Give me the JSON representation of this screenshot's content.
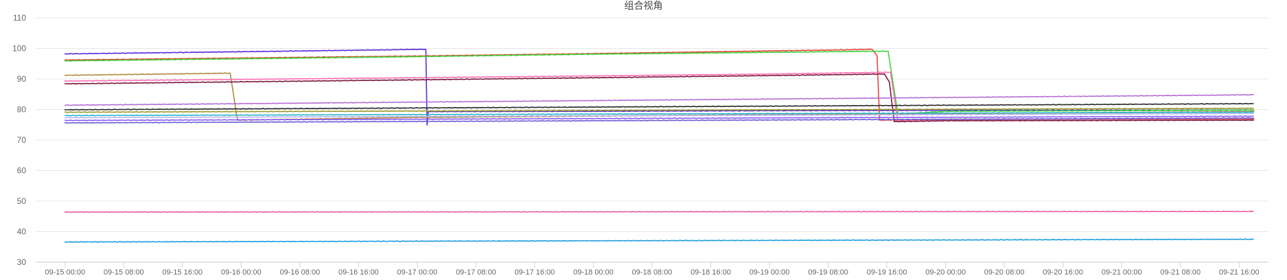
{
  "chart_data": {
    "type": "line",
    "title": "组合视角",
    "xlabel": "",
    "ylabel": "",
    "ylim": [
      30,
      110
    ],
    "yticks": [
      30,
      40,
      50,
      60,
      70,
      80,
      90,
      100,
      110
    ],
    "xlim": [
      "09-14 20:00",
      "09-21 20:00"
    ],
    "xticks": [
      "09-15 00:00",
      "09-15 08:00",
      "09-15 16:00",
      "09-16 00:00",
      "09-16 08:00",
      "09-16 16:00",
      "09-17 00:00",
      "09-17 08:00",
      "09-17 16:00",
      "09-18 00:00",
      "09-18 08:00",
      "09-18 16:00",
      "09-19 00:00",
      "09-19 08:00",
      "09-19 16:00",
      "09-20 00:00",
      "09-20 08:00",
      "09-20 16:00",
      "09-21 00:00",
      "09-21 08:00",
      "09-21 16:00"
    ],
    "grid": true,
    "legend": "none",
    "series": [
      {
        "color": "#5b2bd9",
        "x": [
          "09-15 00:00",
          "09-16 00:00",
          "09-17 01:10",
          "09-17 01:20",
          "09-17 01:30",
          "09-18 00:00",
          "09-19 00:00",
          "09-20 00:00",
          "09-21 18:00"
        ],
        "y": [
          98.2,
          98.9,
          99.7,
          75,
          79.3,
          79.4,
          79.6,
          79.7,
          79.8
        ]
      },
      {
        "color": "#e8443a",
        "x": [
          "09-15 00:00",
          "09-17 00:00",
          "09-18 00:00",
          "09-19 12:00",
          "09-19 14:00",
          "09-19 14:40",
          "09-19 15:00",
          "09-20 00:00",
          "09-21 18:00"
        ],
        "y": [
          96.2,
          97.5,
          98.3,
          99.6,
          99.7,
          97.5,
          76.5,
          76.8,
          77.0
        ]
      },
      {
        "color": "#3fd33f",
        "x": [
          "09-15 00:00",
          "09-17 00:00",
          "09-18 00:00",
          "09-19 12:00",
          "09-19 16:10",
          "09-19 17:30",
          "09-20 00:00",
          "09-21 18:00"
        ],
        "y": [
          95.9,
          97.3,
          98.1,
          99.0,
          99.1,
          78.5,
          79.4,
          79.8
        ]
      },
      {
        "color": "#b08a3e",
        "x": [
          "09-15 00:00",
          "09-15 20:00",
          "09-15 22:30",
          "09-15 23:30",
          "09-17 00:00",
          "09-19 00:00",
          "09-21 18:00"
        ],
        "y": [
          91.2,
          91.8,
          91.9,
          76.5,
          77.4,
          78.3,
          79.3
        ]
      },
      {
        "color": "#ff6fb4",
        "x": [
          "09-15 00:00",
          "09-17 00:00",
          "09-19 00:00",
          "09-19 16:30",
          "09-19 17:30",
          "09-20 00:00",
          "09-21 18:00"
        ],
        "y": [
          89.3,
          90.4,
          91.6,
          92.2,
          76.2,
          76.4,
          76.6
        ]
      },
      {
        "color": "#7a1a3c",
        "x": [
          "09-15 00:00",
          "09-17 00:00",
          "09-19 00:00",
          "09-19 15:40",
          "09-19 16:20",
          "09-19 17:00",
          "09-20 00:00",
          "09-21 18:00"
        ],
        "y": [
          88.4,
          89.7,
          91.1,
          91.6,
          89.0,
          76.0,
          76.3,
          76.5
        ]
      },
      {
        "color": "#b56fd6",
        "x": [
          "09-15 00:00",
          "09-21 18:00"
        ],
        "y": [
          81.4,
          84.8
        ]
      },
      {
        "color": "#2a2a2a",
        "x": [
          "09-15 00:00",
          "09-21 18:00"
        ],
        "y": [
          79.9,
          81.9
        ]
      },
      {
        "color": "#9a9a2a",
        "x": [
          "09-15 00:00",
          "09-21 18:00"
        ],
        "y": [
          79.1,
          80.4
        ]
      },
      {
        "color": "#2bb5c9",
        "x": [
          "09-15 00:00",
          "09-21 18:00"
        ],
        "y": [
          78.0,
          79.1
        ]
      },
      {
        "color": "#b6b6ee",
        "x": [
          "09-15 00:00",
          "09-21 18:00"
        ],
        "y": [
          77.3,
          78.7
        ]
      },
      {
        "color": "#8b5cf6",
        "x": [
          "09-15 00:00",
          "09-21 18:00"
        ],
        "y": [
          76.4,
          77.8
        ]
      },
      {
        "color": "#6b5fd4",
        "x": [
          "09-15 00:00",
          "09-21 18:00"
        ],
        "y": [
          75.6,
          77.2
        ]
      },
      {
        "color": "#e85d9b",
        "x": [
          "09-15 00:00",
          "09-21 18:00"
        ],
        "y": [
          46.4,
          46.6
        ]
      },
      {
        "color": "#1f9ee0",
        "x": [
          "09-15 00:00",
          "09-21 18:00"
        ],
        "y": [
          36.6,
          37.5
        ]
      }
    ]
  }
}
